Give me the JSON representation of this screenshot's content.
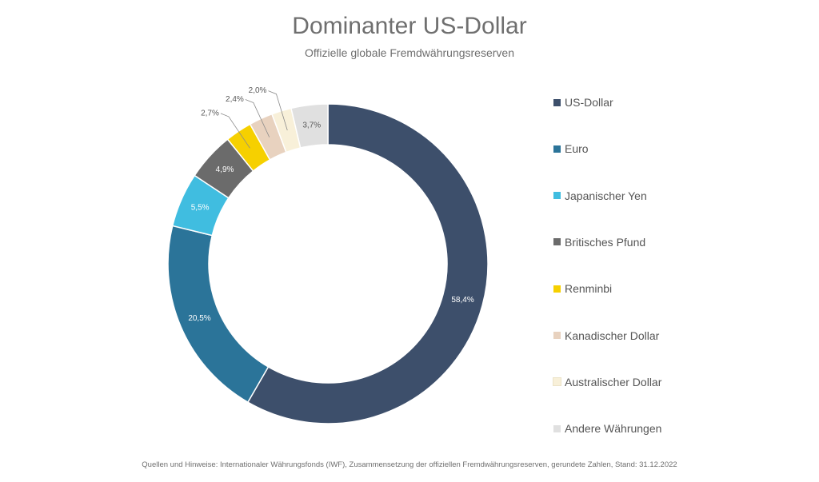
{
  "chart_data": {
    "type": "pie",
    "title": "Dominanter US-Dollar",
    "subtitle": "Offizielle globale Fremdwährungsreserven",
    "source": "Quellen und Hinweise: Internationaler Währungsfonds (IWF), Zusammensetzung der offiziellen Fremdwährungsreserven, gerundete Zahlen, Stand: 31.12.2022",
    "donut": true,
    "legend_position": "right",
    "slices": [
      {
        "label": "US-Dollar",
        "value": 58.4,
        "value_label": "58,4%",
        "color": "#3d4f6b"
      },
      {
        "label": "Euro",
        "value": 20.5,
        "value_label": "20,5%",
        "color": "#2b7499"
      },
      {
        "label": "Japanischer Yen",
        "value": 5.5,
        "value_label": "5,5%",
        "color": "#40bde0"
      },
      {
        "label": "Britisches Pfund",
        "value": 4.9,
        "value_label": "4,9%",
        "color": "#6b6b6b"
      },
      {
        "label": "Renminbi",
        "value": 2.7,
        "value_label": "2,7%",
        "color": "#f6d000"
      },
      {
        "label": "Kanadischer Dollar",
        "value": 2.4,
        "value_label": "2,4%",
        "color": "#e8d2bf"
      },
      {
        "label": "Australischer Dollar",
        "value": 2.0,
        "value_label": "2,0%",
        "color": "#f8f0d9"
      },
      {
        "label": "Andere Währungen",
        "value": 3.7,
        "value_label": "3,7%",
        "color": "#e0e0e0"
      }
    ]
  }
}
